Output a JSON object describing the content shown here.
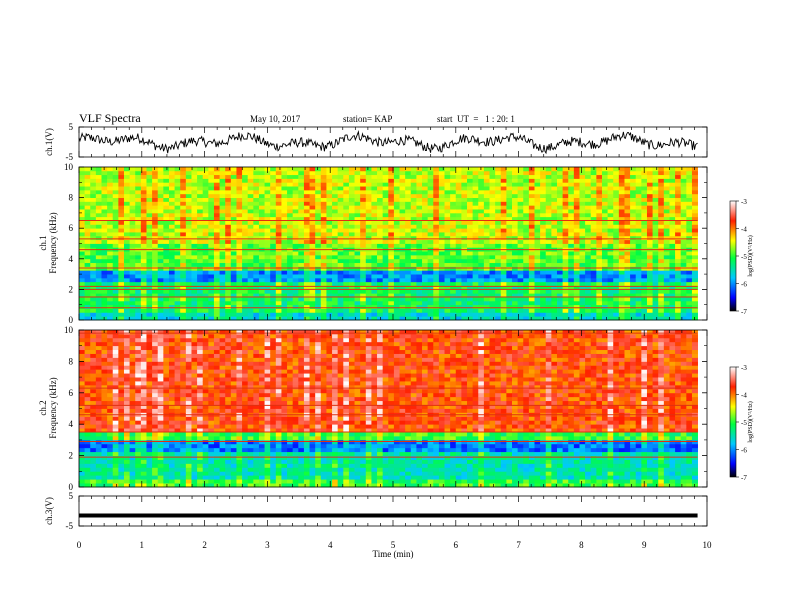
{
  "header": {
    "title": "VLF Spectra",
    "date": "May 10, 2017",
    "station": "station= KAP",
    "start_ut": "start  UT  =   1 : 20: 1"
  },
  "chart_data": [
    {
      "type": "line",
      "name": "ch1-waveform",
      "ylabel": "ch.1(V)",
      "ylim": [
        -5,
        5
      ],
      "yticks": [
        "5",
        "-5"
      ],
      "x_range_min": [
        0,
        9.85
      ],
      "series_color": "#000000",
      "description_level": "fluctuates roughly between -4 and 4 V"
    },
    {
      "type": "heatmap",
      "name": "ch1-spectrogram",
      "ylabel": "ch.1 Frequency (kHz)",
      "ylabel_lines": [
        "ch.1",
        "Frequency (kHz)"
      ],
      "ylim": [
        0,
        10
      ],
      "yticks": [
        "0",
        "2",
        "4",
        "6",
        "8",
        "10"
      ],
      "x_range_min": [
        0,
        9.85
      ],
      "bands": [
        {
          "from_khz": 0,
          "to_khz": 0.5,
          "level": -5.6
        },
        {
          "from_khz": 0.5,
          "to_khz": 2.5,
          "level": -5.2
        },
        {
          "from_khz": 2.5,
          "to_khz": 3.3,
          "level": -6.0
        },
        {
          "from_khz": 3.3,
          "to_khz": 5,
          "level": -4.9
        },
        {
          "from_khz": 5,
          "to_khz": 10,
          "level": -4.6
        }
      ],
      "horizontal_lines_khz": [
        0.8,
        1.5,
        2.0,
        2.2,
        3.4,
        4.6,
        5.3,
        6.5
      ],
      "colorbar": {
        "label": "log(PSD)(V²/Hz)",
        "range": [
          -7,
          -3
        ],
        "ticks": [
          "-3",
          "-4",
          "-5",
          "-6",
          "-7"
        ]
      }
    },
    {
      "type": "heatmap",
      "name": "ch2-spectrogram",
      "ylabel": "ch.2 Frequency (kHz)",
      "ylabel_lines": [
        "ch.2",
        "Frequency (kHz)"
      ],
      "ylim": [
        0,
        10
      ],
      "yticks": [
        "0",
        "2",
        "4",
        "6",
        "8",
        "10"
      ],
      "x_range_min": [
        0,
        9.85
      ],
      "bands": [
        {
          "from_khz": 0,
          "to_khz": 0.4,
          "level": -5.0
        },
        {
          "from_khz": 0.4,
          "to_khz": 2.2,
          "level": -5.5
        },
        {
          "from_khz": 2.2,
          "to_khz": 3.0,
          "level": -6.1
        },
        {
          "from_khz": 3.0,
          "to_khz": 3.5,
          "level": -5.0
        },
        {
          "from_khz": 3.5,
          "to_khz": 10,
          "level": -3.8
        }
      ],
      "horizontal_lines_khz": [
        1.9,
        2.9,
        3.5,
        4.6,
        5.2,
        6.3,
        9.8
      ],
      "colorbar": {
        "label": "log(PSD)(V²/Hz)",
        "range": [
          -7,
          -3
        ],
        "ticks": [
          "-3",
          "-4",
          "-5",
          "-6",
          "-7"
        ]
      }
    },
    {
      "type": "line",
      "name": "ch3-waveform",
      "ylabel": "ch.3(V)",
      "ylim": [
        -5,
        5
      ],
      "yticks": [
        "5",
        "-5"
      ],
      "x_range_min": [
        0,
        9.85
      ],
      "constant_value": -1.5,
      "series_color": "#000000"
    }
  ],
  "xaxis": {
    "label": "Time (min)",
    "range": [
      0,
      10
    ],
    "ticks": [
      "0",
      "1",
      "2",
      "3",
      "4",
      "5",
      "6",
      "7",
      "8",
      "9",
      "10"
    ]
  }
}
